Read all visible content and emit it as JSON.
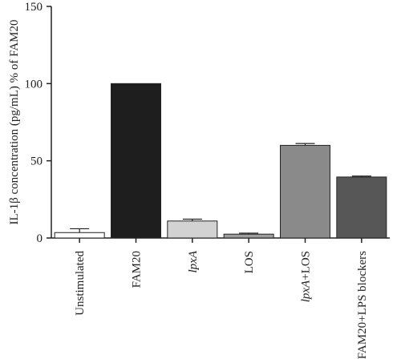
{
  "chart_data": {
    "type": "bar",
    "title": "",
    "xlabel": "",
    "ylabel": "IL-1β concentration (pg/mL) % of FAM20",
    "ylim": [
      0,
      150
    ],
    "yticks": [
      0,
      50,
      100,
      150
    ],
    "grid": false,
    "categories": [
      "Unstimulated",
      "FAM20",
      "lpxA",
      "LOS",
      "lpxA+LOS",
      "FAM20+LPS blockers"
    ],
    "italic_categories": [
      "lpxA"
    ],
    "values": [
      3.5,
      100,
      11,
      2.5,
      60,
      39.5
    ],
    "errors": [
      2.5,
      0,
      1.2,
      0.6,
      1.2,
      0.6
    ],
    "colors": [
      "#ffffff",
      "#1e1e1e",
      "#d2d2d2",
      "#9e9e9e",
      "#8a8a8a",
      "#575757"
    ]
  }
}
